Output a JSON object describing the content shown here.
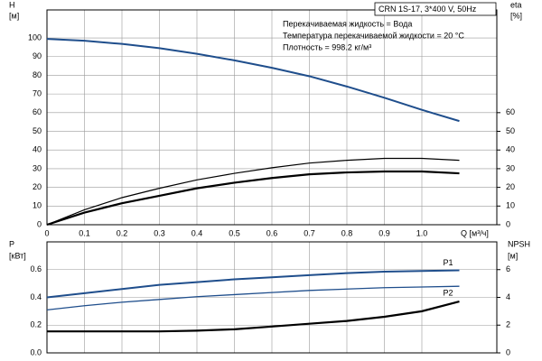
{
  "chart_data": [
    {
      "type": "line",
      "title": "CRN 1S-17, 3*400 V, 50Hz",
      "annotations": [
        "Перекачиваемая жидкость = Вода",
        "Температура перекачиваемой жидкости = 20 °C",
        "Плотность = 998.2 кг/м³"
      ],
      "xlabel": "Q [м³/ч]",
      "ylabel": [
        "H",
        "[м]"
      ],
      "y2label": [
        "eta",
        "[%]"
      ],
      "x": [
        0,
        0.1,
        0.2,
        0.3,
        0.4,
        0.5,
        0.6,
        0.7,
        0.8,
        0.9,
        1.0,
        1.1
      ],
      "xlim": [
        0,
        1.2
      ],
      "xticks": [
        0,
        0.1,
        0.2,
        0.3,
        0.4,
        0.5,
        0.6,
        0.7,
        0.8,
        0.9,
        {
          "value": 1.0,
          "label": "1.0"
        }
      ],
      "ylim": [
        0,
        115
      ],
      "yticks": [
        0,
        10,
        20,
        30,
        40,
        50,
        60,
        70,
        80,
        90,
        100
      ],
      "y2lim": [
        0,
        115
      ],
      "y2ticks": [
        0,
        10,
        20,
        30,
        40,
        50,
        60
      ],
      "grid": true,
      "series": [
        {
          "color": "#1f4e8c",
          "width": 2,
          "values": [
            99.5,
            98.5,
            96.8,
            94.5,
            91.5,
            88,
            84,
            79.5,
            74,
            68,
            61.5,
            55.5
          ]
        },
        {
          "color": "#000000",
          "width": 1.2,
          "axis": "y2",
          "values": [
            0,
            8,
            14.5,
            19.5,
            24,
            27.5,
            30.5,
            33,
            34.5,
            35.5,
            35.5,
            34.5
          ]
        },
        {
          "color": "#000000",
          "width": 2.2,
          "axis": "y2",
          "values": [
            0,
            6.5,
            11.5,
            15.5,
            19.5,
            22.5,
            25,
            27,
            28,
            28.5,
            28.5,
            27.5
          ]
        }
      ]
    },
    {
      "type": "line",
      "ylabel": [
        "P",
        "[кВт]"
      ],
      "y2label": [
        "NPSH",
        "[м]"
      ],
      "x": [
        0,
        0.1,
        0.2,
        0.3,
        0.4,
        0.5,
        0.6,
        0.7,
        0.8,
        0.9,
        1.0,
        1.1
      ],
      "xlim": [
        0,
        1.2
      ],
      "xticks": [
        0,
        0.1,
        0.2,
        0.3,
        0.4,
        0.5,
        0.6,
        0.7,
        0.8,
        0.9,
        1.0
      ],
      "ylim": [
        0,
        0.8
      ],
      "yticks": [
        {
          "value": 0,
          "label": "0.0"
        },
        0.2,
        0.4,
        0.6
      ],
      "y2lim": [
        0,
        8
      ],
      "y2ticks": [
        0,
        2,
        4,
        6
      ],
      "grid": true,
      "series": [
        {
          "name": "P1",
          "color": "#1f4e8c",
          "width": 2,
          "values": [
            0.4,
            0.43,
            0.46,
            0.49,
            0.51,
            0.53,
            0.545,
            0.56,
            0.575,
            0.585,
            0.59,
            0.595
          ]
        },
        {
          "name": "P2",
          "color": "#1f4e8c",
          "width": 1.3,
          "values": [
            0.31,
            0.34,
            0.365,
            0.385,
            0.405,
            0.42,
            0.435,
            0.45,
            0.46,
            0.47,
            0.475,
            0.48
          ]
        },
        {
          "color": "#000000",
          "width": 2.2,
          "axis": "y2",
          "values": [
            1.55,
            1.55,
            1.55,
            1.55,
            1.6,
            1.7,
            1.9,
            2.1,
            2.3,
            2.6,
            3.0,
            3.7
          ]
        }
      ]
    }
  ]
}
